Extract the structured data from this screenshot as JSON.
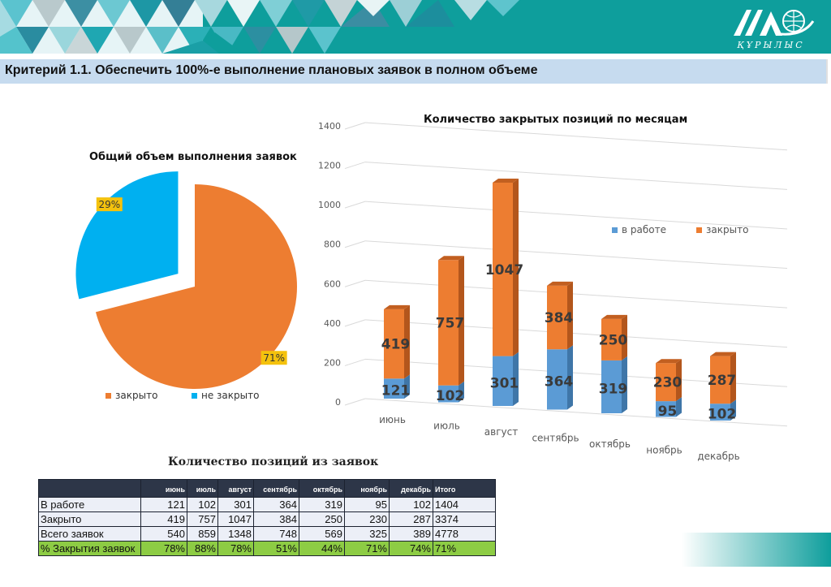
{
  "header": {
    "logo_text": "ҚҰРЫЛЫС",
    "title": "Критерий 1.1. Обеспечить 100%-е выполнение плановых заявок в полном объеме",
    "colors": {
      "teal": "#0e9e9c",
      "titlebar": "#c6dbef"
    }
  },
  "chart_data": [
    {
      "type": "pie",
      "title": "Общий объем выполнения заявок",
      "slices": [
        {
          "label": "закрыто",
          "value": 71,
          "display": "71%",
          "color": "#ed7d31"
        },
        {
          "label": "не закрыто",
          "value": 29,
          "display": "29%",
          "color": "#00b0f0"
        }
      ],
      "legend_position": "bottom"
    },
    {
      "type": "bar",
      "stacked": true,
      "title": "Количество закрытых позиций по месяцам",
      "categories": [
        "июнь",
        "июль",
        "август",
        "сентябрь",
        "октябрь",
        "ноябрь",
        "декабрь"
      ],
      "series": [
        {
          "name": "в работе",
          "values": [
            121,
            102,
            301,
            364,
            319,
            95,
            102
          ],
          "color": "#5b9bd5"
        },
        {
          "name": "закрыто",
          "values": [
            419,
            757,
            1047,
            384,
            250,
            230,
            287
          ],
          "color": "#ed7d31"
        }
      ],
      "yticks": [
        "0",
        "200",
        "400",
        "600",
        "800",
        "1000",
        "1200",
        "1400"
      ],
      "ylim": [
        0,
        1400
      ],
      "grid": true,
      "legend_position": "right"
    }
  ],
  "table": {
    "title": "Количество позиций из заявок",
    "headers": [
      "",
      "июнь",
      "июль",
      "август",
      "сентябрь",
      "октябрь",
      "ноябрь",
      "декабрь",
      "Итого"
    ],
    "rows": [
      {
        "label": "В работе",
        "values": [
          "121",
          "102",
          "301",
          "364",
          "319",
          "95",
          "102"
        ],
        "total": "1404"
      },
      {
        "label": "Закрыто",
        "values": [
          "419",
          "757",
          "1047",
          "384",
          "250",
          "230",
          "287"
        ],
        "total": "3374"
      },
      {
        "label": "Всего заявок",
        "values": [
          "540",
          "859",
          "1348",
          "748",
          "569",
          "325",
          "389"
        ],
        "total": "4778"
      },
      {
        "label": "% Закрытия заявок",
        "values": [
          "78%",
          "88%",
          "78%",
          "51%",
          "44%",
          "71%",
          "74%"
        ],
        "total": "71%"
      }
    ]
  }
}
